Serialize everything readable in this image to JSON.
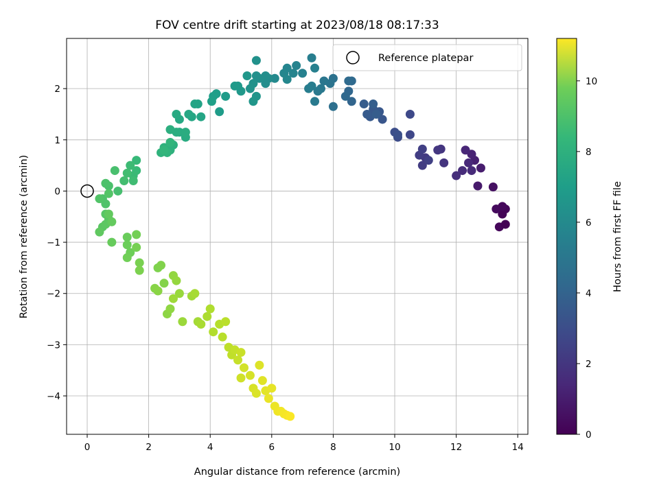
{
  "chart_data": {
    "type": "scatter",
    "title": "FOV centre drift starting at 2023/08/18 08:17:33",
    "xlabel": "Angular distance from reference (arcmin)",
    "ylabel": "Rotation from reference (arcmin)",
    "xlim": [
      -0.67,
      14.33
    ],
    "ylim": [
      -4.75,
      2.98
    ],
    "xticks": [
      0,
      2,
      4,
      6,
      8,
      10,
      12,
      14
    ],
    "yticks": [
      -4,
      -3,
      -2,
      -1,
      0,
      1,
      2
    ],
    "grid": true,
    "legend": {
      "placement": "top-right",
      "entries": [
        "Reference platepar"
      ]
    },
    "colorbar": {
      "label": "Hours from first FF file",
      "range": [
        0,
        11.2
      ],
      "ticks": [
        0,
        2,
        4,
        6,
        8,
        10
      ],
      "colormap": "viridis"
    },
    "reference_point": {
      "x": 0,
      "y": 0,
      "label": "Reference platepar"
    },
    "series": [
      {
        "points": [
          [
            13.6,
            -0.35,
            0.15
          ],
          [
            13.5,
            -0.45,
            0.1
          ],
          [
            13.4,
            -0.7,
            0.2
          ],
          [
            13.3,
            -0.35,
            0.3
          ],
          [
            13.6,
            -0.65,
            0.05
          ],
          [
            13.2,
            0.08,
            0.5
          ],
          [
            13.5,
            -0.3,
            0.25
          ],
          [
            12.7,
            0.1,
            0.8
          ],
          [
            12.8,
            0.45,
            0.9
          ],
          [
            12.6,
            0.6,
            1.0
          ],
          [
            12.5,
            0.72,
            1.1
          ],
          [
            12.3,
            0.8,
            1.2
          ],
          [
            12.4,
            0.55,
            1.3
          ],
          [
            12.2,
            0.4,
            1.4
          ],
          [
            12.0,
            0.3,
            1.5
          ],
          [
            12.5,
            0.4,
            1.35
          ],
          [
            11.6,
            0.55,
            1.7
          ],
          [
            11.5,
            0.82,
            1.75
          ],
          [
            11.4,
            0.8,
            1.8
          ],
          [
            11.0,
            0.65,
            1.9
          ],
          [
            10.9,
            0.5,
            2.0
          ],
          [
            10.8,
            0.7,
            2.05
          ],
          [
            10.9,
            0.82,
            2.1
          ],
          [
            11.1,
            0.6,
            2.15
          ],
          [
            10.5,
            1.1,
            2.4
          ],
          [
            10.5,
            1.5,
            2.5
          ],
          [
            10.1,
            1.05,
            2.6
          ],
          [
            10.0,
            1.15,
            2.7
          ],
          [
            10.1,
            1.1,
            2.75
          ],
          [
            9.6,
            1.4,
            3.0
          ],
          [
            9.5,
            1.55,
            3.05
          ],
          [
            9.3,
            1.6,
            3.1
          ],
          [
            9.2,
            1.45,
            3.15
          ],
          [
            9.1,
            1.5,
            3.2
          ],
          [
            9.0,
            1.7,
            3.25
          ],
          [
            9.4,
            1.5,
            3.3
          ],
          [
            9.3,
            1.7,
            3.35
          ],
          [
            8.6,
            1.75,
            3.6
          ],
          [
            8.5,
            1.95,
            3.7
          ],
          [
            8.4,
            1.85,
            3.8
          ],
          [
            8.6,
            2.15,
            3.85
          ],
          [
            8.5,
            2.15,
            3.9
          ],
          [
            8.0,
            1.65,
            4.1
          ],
          [
            8.0,
            2.2,
            4.2
          ],
          [
            7.9,
            2.1,
            4.3
          ],
          [
            7.7,
            2.15,
            4.4
          ],
          [
            7.6,
            2.0,
            4.5
          ],
          [
            7.5,
            1.95,
            4.55
          ],
          [
            7.4,
            1.75,
            4.6
          ],
          [
            7.3,
            2.05,
            4.7
          ],
          [
            7.2,
            2.0,
            4.75
          ],
          [
            7.3,
            2.6,
            4.8
          ],
          [
            7.4,
            2.4,
            4.9
          ],
          [
            7.0,
            2.3,
            4.95
          ],
          [
            6.8,
            2.45,
            5.0
          ],
          [
            6.7,
            2.3,
            5.05
          ],
          [
            6.5,
            2.4,
            5.1
          ],
          [
            6.4,
            2.3,
            5.15
          ],
          [
            6.5,
            2.18,
            5.2
          ],
          [
            6.1,
            2.2,
            5.3
          ],
          [
            5.9,
            2.2,
            5.4
          ],
          [
            5.8,
            2.1,
            5.45
          ],
          [
            5.8,
            2.25,
            5.5
          ],
          [
            5.6,
            2.2,
            5.55
          ],
          [
            5.5,
            2.25,
            5.6
          ],
          [
            5.5,
            2.55,
            5.65
          ],
          [
            5.4,
            2.1,
            5.7
          ],
          [
            5.3,
            2.0,
            5.75
          ],
          [
            5.5,
            1.85,
            5.8
          ],
          [
            5.4,
            1.75,
            5.85
          ],
          [
            5.2,
            2.25,
            5.9
          ],
          [
            5.0,
            1.95,
            5.95
          ],
          [
            4.9,
            2.05,
            6.0
          ],
          [
            4.8,
            2.05,
            6.05
          ],
          [
            4.5,
            1.85,
            6.1
          ],
          [
            4.3,
            1.55,
            6.15
          ],
          [
            4.2,
            1.9,
            6.2
          ],
          [
            4.1,
            1.85,
            6.25
          ],
          [
            4.05,
            1.75,
            6.3
          ],
          [
            3.6,
            1.7,
            6.45
          ],
          [
            3.5,
            1.7,
            6.5
          ],
          [
            3.7,
            1.45,
            6.55
          ],
          [
            3.4,
            1.45,
            6.6
          ],
          [
            3.3,
            1.5,
            6.65
          ],
          [
            3.0,
            1.4,
            6.7
          ],
          [
            2.9,
            1.5,
            6.75
          ],
          [
            3.0,
            1.15,
            6.8
          ],
          [
            3.2,
            1.05,
            6.85
          ],
          [
            3.2,
            1.15,
            6.9
          ],
          [
            2.9,
            1.15,
            6.95
          ],
          [
            2.7,
            1.2,
            7.0
          ],
          [
            2.8,
            0.9,
            7.05
          ],
          [
            2.7,
            0.8,
            7.1
          ],
          [
            2.5,
            0.85,
            7.15
          ],
          [
            2.4,
            0.75,
            7.2
          ],
          [
            2.6,
            0.75,
            7.25
          ],
          [
            2.7,
            0.95,
            7.3
          ],
          [
            2.5,
            0.8,
            7.35
          ],
          [
            1.6,
            0.6,
            7.5
          ],
          [
            1.6,
            0.4,
            7.55
          ],
          [
            1.5,
            0.3,
            7.6
          ],
          [
            1.4,
            0.5,
            7.65
          ],
          [
            1.5,
            0.2,
            7.7
          ],
          [
            1.3,
            0.35,
            7.75
          ],
          [
            1.2,
            0.2,
            7.8
          ],
          [
            1.0,
            0.0,
            7.85
          ],
          [
            0.9,
            0.4,
            7.9
          ],
          [
            0.7,
            0.1,
            7.95
          ],
          [
            0.6,
            0.15,
            8.0
          ],
          [
            0.5,
            -0.15,
            8.0
          ],
          [
            0.6,
            -0.25,
            8.05
          ],
          [
            0.4,
            -0.15,
            8.1
          ],
          [
            0.7,
            -0.05,
            8.15
          ],
          [
            0.6,
            -0.45,
            8.2
          ],
          [
            0.7,
            -0.55,
            8.25
          ],
          [
            0.5,
            -0.7,
            8.3
          ],
          [
            0.6,
            -0.65,
            8.35
          ],
          [
            0.4,
            -0.8,
            8.4
          ],
          [
            0.7,
            -0.45,
            8.45
          ],
          [
            0.8,
            -0.6,
            8.5
          ],
          [
            0.8,
            -1.0,
            8.55
          ],
          [
            1.3,
            -0.9,
            8.6
          ],
          [
            1.3,
            -1.05,
            8.65
          ],
          [
            1.4,
            -1.2,
            8.7
          ],
          [
            1.3,
            -1.3,
            8.75
          ],
          [
            1.6,
            -0.85,
            8.8
          ],
          [
            1.6,
            -1.1,
            8.85
          ],
          [
            1.7,
            -1.4,
            8.9
          ],
          [
            1.7,
            -1.55,
            8.95
          ],
          [
            2.3,
            -1.5,
            9.0
          ],
          [
            2.4,
            -1.45,
            9.05
          ],
          [
            2.5,
            -1.8,
            9.1
          ],
          [
            2.2,
            -1.9,
            9.15
          ],
          [
            2.3,
            -1.95,
            9.2
          ],
          [
            2.6,
            -2.4,
            9.25
          ],
          [
            2.7,
            -2.3,
            9.3
          ],
          [
            2.8,
            -1.65,
            9.35
          ],
          [
            2.9,
            -1.75,
            9.4
          ],
          [
            3.0,
            -2.0,
            9.45
          ],
          [
            3.1,
            -2.55,
            9.5
          ],
          [
            2.8,
            -2.1,
            9.55
          ],
          [
            3.4,
            -2.05,
            9.6
          ],
          [
            3.6,
            -2.55,
            9.65
          ],
          [
            3.5,
            -2.0,
            9.7
          ],
          [
            3.7,
            -2.6,
            9.75
          ],
          [
            3.9,
            -2.45,
            9.8
          ],
          [
            4.0,
            -2.3,
            9.85
          ],
          [
            4.1,
            -2.75,
            9.9
          ],
          [
            4.3,
            -2.6,
            9.95
          ],
          [
            4.4,
            -2.85,
            10.0
          ],
          [
            4.5,
            -2.55,
            10.05
          ],
          [
            4.6,
            -3.05,
            10.1
          ],
          [
            4.7,
            -3.2,
            10.15
          ],
          [
            4.8,
            -3.1,
            10.2
          ],
          [
            4.9,
            -3.3,
            10.25
          ],
          [
            5.0,
            -3.15,
            10.3
          ],
          [
            5.0,
            -3.65,
            10.4
          ],
          [
            5.1,
            -3.45,
            10.45
          ],
          [
            5.3,
            -3.6,
            10.5
          ],
          [
            5.4,
            -3.85,
            10.55
          ],
          [
            5.5,
            -3.95,
            10.6
          ],
          [
            5.6,
            -3.4,
            10.65
          ],
          [
            5.7,
            -3.7,
            10.7
          ],
          [
            5.8,
            -3.9,
            10.75
          ],
          [
            6.0,
            -3.85,
            10.8
          ],
          [
            5.9,
            -4.05,
            10.85
          ],
          [
            6.1,
            -4.2,
            10.9
          ],
          [
            6.2,
            -4.3,
            10.95
          ],
          [
            6.3,
            -4.3,
            11.0
          ],
          [
            6.4,
            -4.35,
            11.05
          ],
          [
            6.5,
            -4.38,
            11.1
          ],
          [
            6.6,
            -4.4,
            11.15
          ]
        ]
      }
    ]
  }
}
